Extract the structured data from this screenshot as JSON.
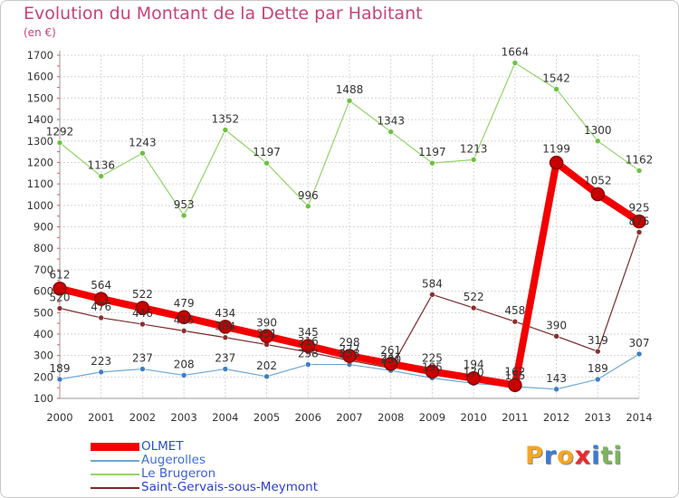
{
  "title": "Evolution du Montant de la Dette par Habitant",
  "unit_note": "(en €)",
  "brand": {
    "text": "Proxiti",
    "letters": [
      {
        "ch": "P",
        "color": "#f5a623"
      },
      {
        "ch": "r",
        "color": "#3a7bd5"
      },
      {
        "ch": "o",
        "color": "#f5a623"
      },
      {
        "ch": "x",
        "color": "#e8292c"
      },
      {
        "ch": "i",
        "color": "#3a7bd5"
      },
      {
        "ch": "t",
        "color": "#7ab55c"
      },
      {
        "ch": "i",
        "color": "#7ab55c"
      }
    ]
  },
  "chart_data": {
    "type": "line",
    "categories": [
      "2000",
      "2001",
      "2002",
      "2003",
      "2004",
      "2005",
      "2006",
      "2007",
      "2008",
      "2009",
      "2010",
      "2011",
      "2012",
      "2013",
      "2014"
    ],
    "ylim": [
      100,
      1700
    ],
    "yticks": [
      100,
      200,
      300,
      400,
      500,
      600,
      700,
      800,
      900,
      1000,
      1100,
      1200,
      1300,
      1400,
      1500,
      1600,
      1700
    ],
    "grid": true,
    "legend_position": "bottom-left",
    "series": [
      {
        "name": "Le Brugeron",
        "color": "#94d36a",
        "marker": "#6cc040",
        "width": 1.2,
        "radius": 3,
        "values": [
          1292,
          1136,
          1243,
          953,
          1352,
          1197,
          996,
          1488,
          1343,
          1197,
          1213,
          1664,
          1542,
          1300,
          1162
        ],
        "labels": [
          "1292",
          "1136",
          "1243",
          "953",
          "1352",
          "1197",
          "996",
          "1488",
          "1343",
          "1197",
          "1213",
          "1664",
          "1542",
          "1300",
          "1162"
        ]
      },
      {
        "name": "Saint-Gervais-sous-Meymont",
        "color": "#7a2a2a",
        "marker": "#8b2e2e",
        "width": 1.2,
        "radius": 3,
        "values": [
          520,
          476,
          446,
          415,
          384,
          351,
          316,
          277,
          241,
          584,
          522,
          458,
          390,
          319,
          875
        ],
        "labels": [
          "520",
          "476",
          "446",
          "415",
          "384",
          "351",
          "316",
          "277",
          "241",
          "584",
          "522",
          "458",
          "390",
          "319",
          "875"
        ]
      },
      {
        "name": "Augerolles",
        "color": "#6aa7d8",
        "marker": "#3d7ec2",
        "width": 1.2,
        "radius": 3,
        "values": [
          189,
          223,
          237,
          208,
          237,
          202,
          258,
          258,
          230,
          195,
          170,
          155,
          143,
          189,
          307
        ],
        "labels": [
          "189",
          "223",
          "237",
          "208",
          "237",
          "202",
          "258",
          "258",
          "230",
          "195",
          "170",
          "155",
          "143",
          "189",
          "307"
        ]
      },
      {
        "name": "OLMET",
        "color": "#f20000",
        "marker": "#c80000",
        "width": 8,
        "radius": 7,
        "values": [
          612,
          564,
          522,
          479,
          434,
          390,
          345,
          298,
          261,
          225,
          194,
          162,
          1199,
          1052,
          925
        ],
        "labels": [
          "612",
          "564",
          "522",
          "479",
          "434",
          "390",
          "345",
          "298",
          "261",
          "225",
          "194",
          "162",
          "1199",
          "1052",
          "925"
        ]
      }
    ],
    "legend": [
      {
        "name": "OLMET",
        "color": "#f20000",
        "thick": true
      },
      {
        "name": "Augerolles",
        "color": "#6aa7d8",
        "thick": false
      },
      {
        "name": "Le Brugeron",
        "color": "#94d36a",
        "thick": false
      },
      {
        "name": "Saint-Gervais-sous-Meymont",
        "color": "#7a2a2a",
        "thick": false
      }
    ]
  }
}
